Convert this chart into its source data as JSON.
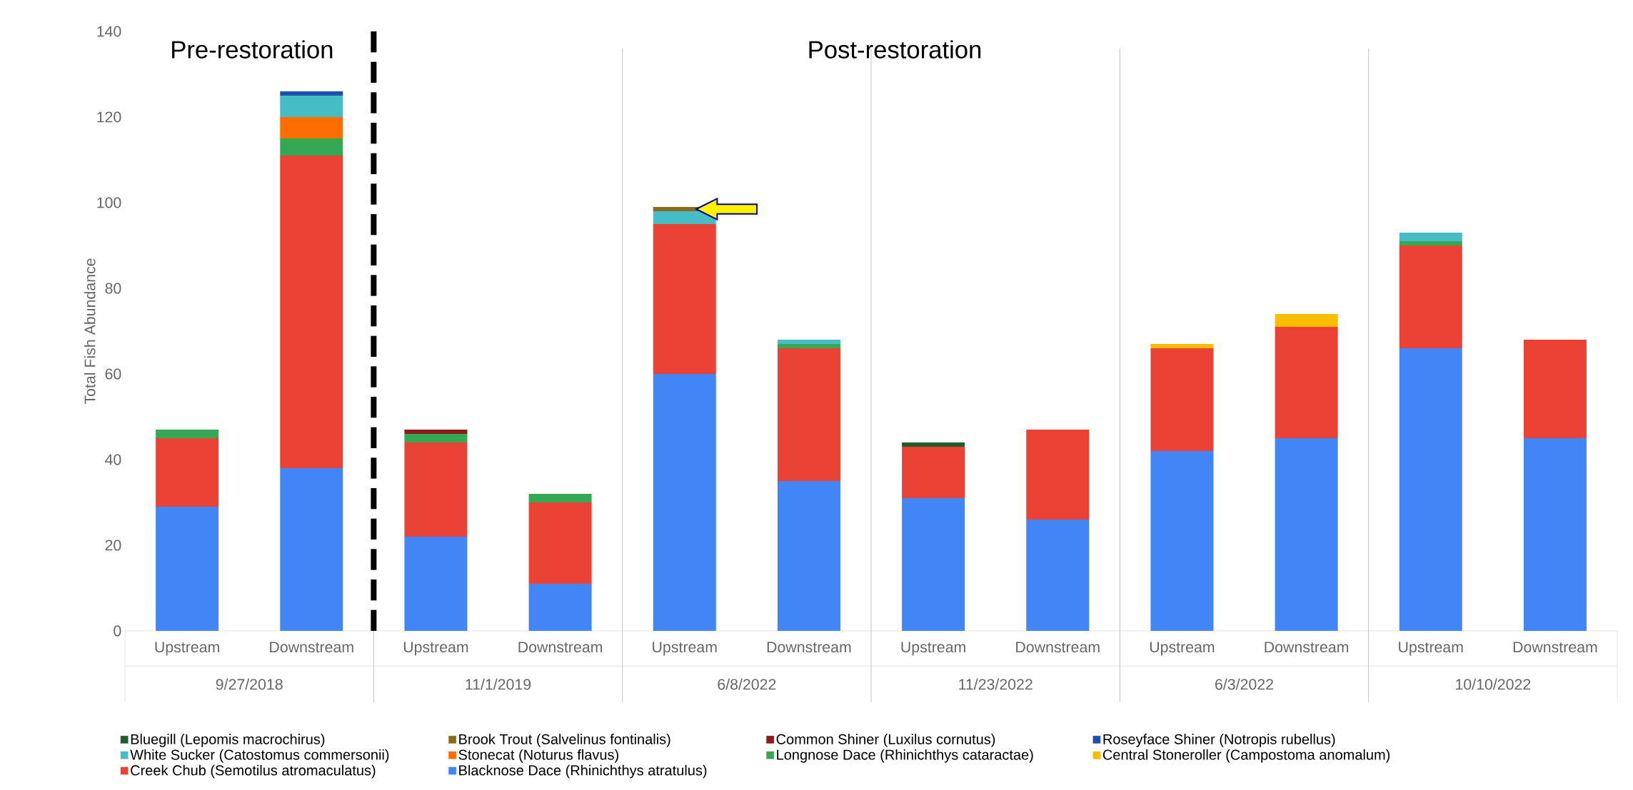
{
  "chart_data": {
    "type": "bar",
    "stacked": true,
    "ylabel": "Total Fish Abundance",
    "categories": [
      "Upstream",
      "Downstream",
      "Upstream",
      "Downstream",
      "Upstream",
      "Downstream",
      "Upstream",
      "Downstream",
      "Upstream",
      "Downstream",
      "Upstream",
      "Downstream"
    ],
    "series": [
      {
        "name": "Blacknose Dace (Rhinichthys atratulus)",
        "color": "#4285f4",
        "values": [
          29,
          38,
          22,
          11,
          60,
          35,
          31,
          26,
          42,
          45,
          66,
          45
        ]
      },
      {
        "name": "Creek Chub (Semotilus atromaculatus)",
        "color": "#ea4335",
        "values": [
          16,
          73,
          22,
          19,
          35,
          31,
          12,
          21,
          24,
          26,
          24,
          23
        ]
      },
      {
        "name": "Central Stoneroller (Campostoma anomalum)",
        "color": "#fbbc04",
        "values": [
          0,
          0,
          0,
          0,
          0,
          0,
          0,
          0,
          1,
          3,
          0,
          0
        ]
      },
      {
        "name": "Longnose Dace (Rhinichthys cataractae)",
        "color": "#34a853",
        "values": [
          2,
          4,
          2,
          2,
          0,
          1,
          0,
          0,
          0,
          0,
          1,
          0
        ]
      },
      {
        "name": "Stonecat (Noturus flavus)",
        "color": "#ff6d01",
        "values": [
          0,
          5,
          0,
          0,
          0,
          0,
          0,
          0,
          0,
          0,
          0,
          0
        ]
      },
      {
        "name": "White Sucker (Catostomus commersonii)",
        "color": "#46bdc6",
        "values": [
          0,
          5,
          0,
          0,
          3,
          1,
          0,
          0,
          0,
          0,
          2,
          0
        ]
      },
      {
        "name": "Roseyface Shiner (Notropis rubellus)",
        "color": "#1c4fae",
        "values": [
          0,
          1,
          0,
          0,
          0,
          0,
          0,
          0,
          0,
          0,
          0,
          0
        ]
      },
      {
        "name": "Common Shiner (Luxilus cornutus)",
        "color": "#8e1b1b",
        "values": [
          0,
          0,
          1,
          0,
          0,
          0,
          0,
          0,
          0,
          0,
          0,
          0
        ]
      },
      {
        "name": "Brook Trout (Salvelinus fontinalis)",
        "color": "#8a6d1c",
        "values": [
          0,
          0,
          0,
          0,
          1,
          0,
          0,
          0,
          0,
          0,
          0,
          0
        ]
      },
      {
        "name": "Bluegill (Lepomis macrochirus)",
        "color": "#1d5e2c",
        "values": [
          0,
          0,
          0,
          0,
          0,
          0,
          1,
          0,
          0,
          0,
          0,
          0
        ]
      }
    ],
    "ylim": [
      0,
      140
    ],
    "yticks": [
      0,
      20,
      40,
      60,
      80,
      100,
      120,
      140
    ],
    "grid": false,
    "legend": "bottom",
    "annotations": [
      "9/27/2018",
      "11/1/2019",
      "6/8/2022",
      "11/23/2022",
      "6/3/2022",
      "10/10/2022",
      "Pre-restoration",
      "Post-restoration"
    ]
  }
}
